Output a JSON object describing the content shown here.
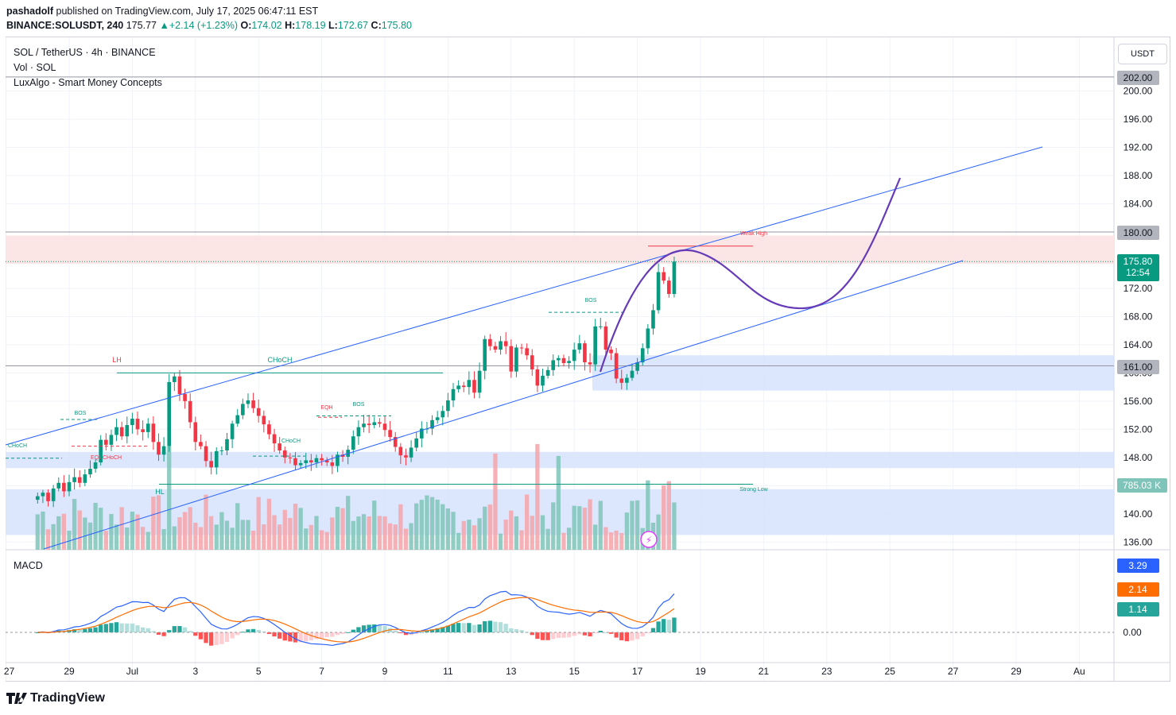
{
  "publish_line": {
    "author": "pashadolf",
    "text": "published on TradingView.com, July 17, 2025 06:47:11 EST"
  },
  "symbol_line": {
    "symbol": "BINANCE:SOLUSDT, 240",
    "last": "175.77",
    "change": "+2.14 (+1.23%)",
    "o_label": "O:",
    "o": "174.02",
    "h_label": "H:",
    "h": "178.19",
    "l_label": "L:",
    "l": "172.67",
    "c_label": "C:",
    "c": "175.80"
  },
  "legend": {
    "title": "SOL / TetherUS · 4h · BINANCE",
    "vol": "Vol · SOL",
    "indicator": "LuxAlgo - Smart Money Concepts",
    "macd": "MACD"
  },
  "currency_button": "USDT",
  "price_badges": {
    "top_level": "202.00",
    "resistance": "180.00",
    "last_price": "175.80",
    "countdown": "12:54",
    "support": "161.00",
    "volume": "785.03 K",
    "macd_line": "3.29",
    "signal_line": "2.14",
    "histogram": "1.14"
  },
  "colors": {
    "up": "#089981",
    "down": "#f23645",
    "channel": "#2962ff",
    "projection": "#673ab7",
    "macd": "#2962ff",
    "signal": "#ff6d00",
    "resistance_zone": "#fce4e4",
    "demand_zone": "#d6e2fb"
  },
  "footer": {
    "brand": "TradingView"
  },
  "chart_data": {
    "type": "candlestick",
    "timeframe": "4h",
    "y_axis_ticks": [
      "200.00",
      "196.00",
      "192.00",
      "188.00",
      "184.00",
      "180.00",
      "176.00",
      "172.00",
      "168.00",
      "164.00",
      "160.00",
      "156.00",
      "152.00",
      "148.00",
      "144.00",
      "140.00",
      "136.00"
    ],
    "y_axis_visible_labels": [
      "200.00",
      "196.00",
      "192.00",
      "188.00",
      "184.00",
      "172.00",
      "168.00",
      "164.00",
      "160.00",
      "156.00",
      "152.00",
      "148.00",
      "140.00",
      "136.00"
    ],
    "x_axis_ticks": [
      "27",
      "29",
      "Jul",
      "3",
      "5",
      "7",
      "9",
      "11",
      "13",
      "15",
      "17",
      "19",
      "21",
      "23",
      "25",
      "27",
      "29",
      "Au"
    ],
    "macd_axis_ticks": [
      "0.00"
    ],
    "closes": [
      142.5,
      143.0,
      141.8,
      143.6,
      144.4,
      143.2,
      144.5,
      145.2,
      144.4,
      145.6,
      146.4,
      147.3,
      150.5,
      149.8,
      151.2,
      152.3,
      151.0,
      152.6,
      153.5,
      152.0,
      151.6,
      152.8,
      150.2,
      148.4,
      149.6,
      158.7,
      159.5,
      157.0,
      156.0,
      153.0,
      150.2,
      149.6,
      147.5,
      146.6,
      148.9,
      149.0,
      150.6,
      152.8,
      154.0,
      155.6,
      156.1,
      155.0,
      153.9,
      152.7,
      151.3,
      150.0,
      149.0,
      148.0,
      147.9,
      146.9,
      147.2,
      147.6,
      147.3,
      147.9,
      147.6,
      147.3,
      146.8,
      148.4,
      148.1,
      149.1,
      151.0,
      152.3,
      152.8,
      152.6,
      153.0,
      152.8,
      151.9,
      150.9,
      149.5,
      148.3,
      148.0,
      149.4,
      150.7,
      152.1,
      152.1,
      153.3,
      153.7,
      154.6,
      156.1,
      157.7,
      158.2,
      158.0,
      159.0,
      157.2,
      160.3,
      164.8,
      163.8,
      163.3,
      164.5,
      163.8,
      160.2,
      163.6,
      163.5,
      162.5,
      160.5,
      158.2,
      159.6,
      160.4,
      161.8,
      162.1,
      161.4,
      161.7,
      163.3,
      164.2,
      161.5,
      161.2,
      166.6,
      166.6,
      163.3,
      162.8,
      159.2,
      158.6,
      159.3,
      160.3,
      161.5,
      163.5,
      166.3,
      168.9,
      174.3,
      173.1,
      171.2,
      175.8
    ],
    "volume_label": "785.03 K",
    "macd_label": "MACD",
    "annotations": [
      "LH",
      "CHoCH",
      "BOS",
      "EQH",
      "BOS",
      "CHoCH",
      "BOS",
      "CHoCH",
      "EQL",
      "CHoCH",
      "HL",
      "Weak High",
      "Strong Low"
    ],
    "levels": [
      202.0,
      180.0,
      161.0
    ],
    "zones": [
      {
        "label": "resistance",
        "from": 175.5,
        "to": 179.5
      },
      {
        "label": "demand",
        "from": 157.5,
        "to": 162.5
      },
      {
        "label": "demand",
        "from": 146.5,
        "to": 148.8
      },
      {
        "label": "demand",
        "from": 137.0,
        "to": 143.5
      }
    ],
    "channel": {
      "upper": [
        [
          151.0,
          0
        ],
        [
          192.0,
          1
        ]
      ],
      "lower": [
        [
          135.0,
          0
        ],
        [
          176.0,
          1
        ]
      ]
    },
    "projection": "down to ~169 around Jul 23 then up to ~188 by Jul 25"
  }
}
